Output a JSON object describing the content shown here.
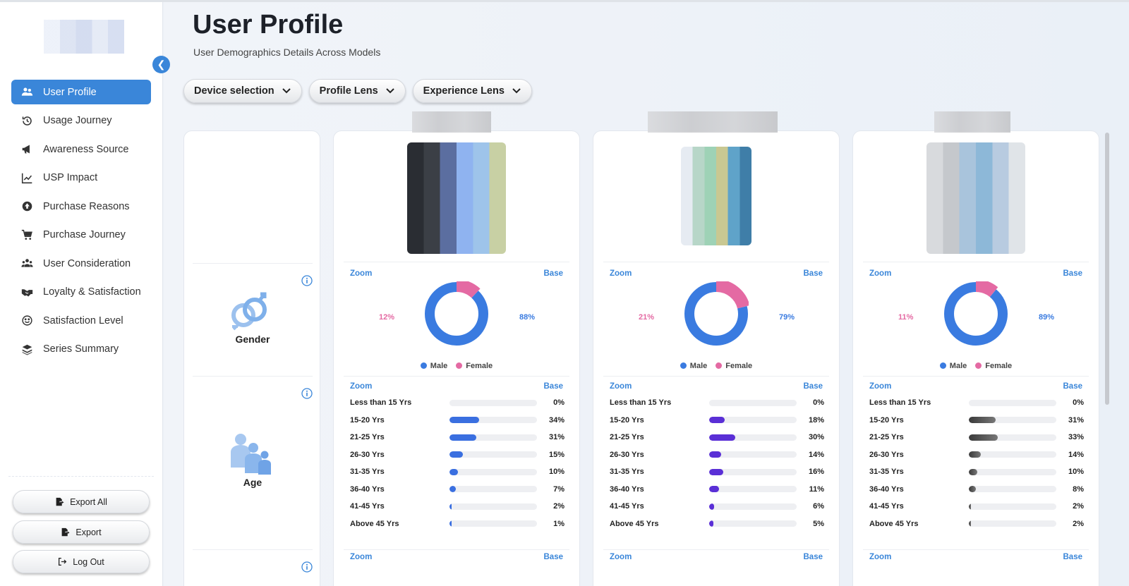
{
  "nav": {
    "collapse_icon": "chevron-left-icon",
    "items": [
      {
        "label": "User Profile",
        "icon": "users-icon",
        "active": true
      },
      {
        "label": "Usage Journey",
        "icon": "history-icon"
      },
      {
        "label": "Awareness Source",
        "icon": "megaphone-icon"
      },
      {
        "label": "USP Impact",
        "icon": "line-chart-icon"
      },
      {
        "label": "Purchase Reasons",
        "icon": "arrow-circle-icon"
      },
      {
        "label": "Purchase Journey",
        "icon": "cart-icon"
      },
      {
        "label": "User Consideration",
        "icon": "users-icon"
      },
      {
        "label": "Loyalty & Satisfaction",
        "icon": "handshake-icon"
      },
      {
        "label": "Satisfaction Level",
        "icon": "smile-icon"
      },
      {
        "label": "Series Summary",
        "icon": "layers-icon"
      }
    ],
    "buttons": [
      {
        "label": "Export All",
        "icon": "file-export-icon"
      },
      {
        "label": "Export",
        "icon": "file-export-icon"
      },
      {
        "label": "Log Out",
        "icon": "logout-icon"
      }
    ]
  },
  "header": {
    "title": "User Profile",
    "subtitle": "User Demographics Details Across Models"
  },
  "filters": [
    "Device selection",
    "Profile Lens",
    "Experience Lens"
  ],
  "sections": {
    "gender": "Gender",
    "age": "Age"
  },
  "panel": {
    "zoom_label": "Zoom",
    "base_label": "Base",
    "legend_male": "Male",
    "legend_female": "Female",
    "age_labels": [
      "Less than 15 Yrs",
      "15-20 Yrs",
      "21-25 Yrs",
      "26-30 Yrs",
      "31-35 Yrs",
      "36-40 Yrs",
      "41-45 Yrs",
      "Above 45 Yrs"
    ]
  },
  "colors": {
    "accent": "#3a86d9",
    "male": "#3a7be0",
    "female": "#e46aa3"
  },
  "chart_data": [
    {
      "type": "pie",
      "categories": [
        "Male",
        "Female"
      ],
      "values": [
        88,
        12
      ],
      "labels": [
        "88%",
        "12%"
      ]
    },
    {
      "type": "pie",
      "categories": [
        "Male",
        "Female"
      ],
      "values": [
        79,
        21
      ],
      "labels": [
        "79%",
        "21%"
      ]
    },
    {
      "type": "pie",
      "categories": [
        "Male",
        "Female"
      ],
      "values": [
        89,
        11
      ],
      "labels": [
        "89%",
        "11%"
      ]
    },
    {
      "type": "bar",
      "categories": [
        "Less than 15 Yrs",
        "15-20 Yrs",
        "21-25 Yrs",
        "26-30 Yrs",
        "31-35 Yrs",
        "36-40 Yrs",
        "41-45 Yrs",
        "Above 45 Yrs"
      ],
      "values": [
        0,
        34,
        31,
        15,
        10,
        7,
        2,
        1
      ],
      "labels": [
        "0%",
        "34%",
        "31%",
        "15%",
        "10%",
        "7%",
        "2%",
        "1%"
      ],
      "color": "#3a6fe0"
    },
    {
      "type": "bar",
      "categories": [
        "Less than 15 Yrs",
        "15-20 Yrs",
        "21-25 Yrs",
        "26-30 Yrs",
        "31-35 Yrs",
        "36-40 Yrs",
        "41-45 Yrs",
        "Above 45 Yrs"
      ],
      "values": [
        0,
        18,
        30,
        14,
        16,
        11,
        6,
        5
      ],
      "labels": [
        "0%",
        "18%",
        "30%",
        "14%",
        "16%",
        "11%",
        "6%",
        "5%"
      ],
      "color": "#5a2fd6"
    },
    {
      "type": "bar",
      "categories": [
        "Less than 15 Yrs",
        "15-20 Yrs",
        "21-25 Yrs",
        "26-30 Yrs",
        "31-35 Yrs",
        "36-40 Yrs",
        "41-45 Yrs",
        "Above 45 Yrs"
      ],
      "values": [
        0,
        31,
        33,
        14,
        10,
        8,
        2,
        2
      ],
      "labels": [
        "0%",
        "31%",
        "33%",
        "14%",
        "10%",
        "8%",
        "2%",
        "2%"
      ],
      "color": "#4a4a4a"
    }
  ]
}
